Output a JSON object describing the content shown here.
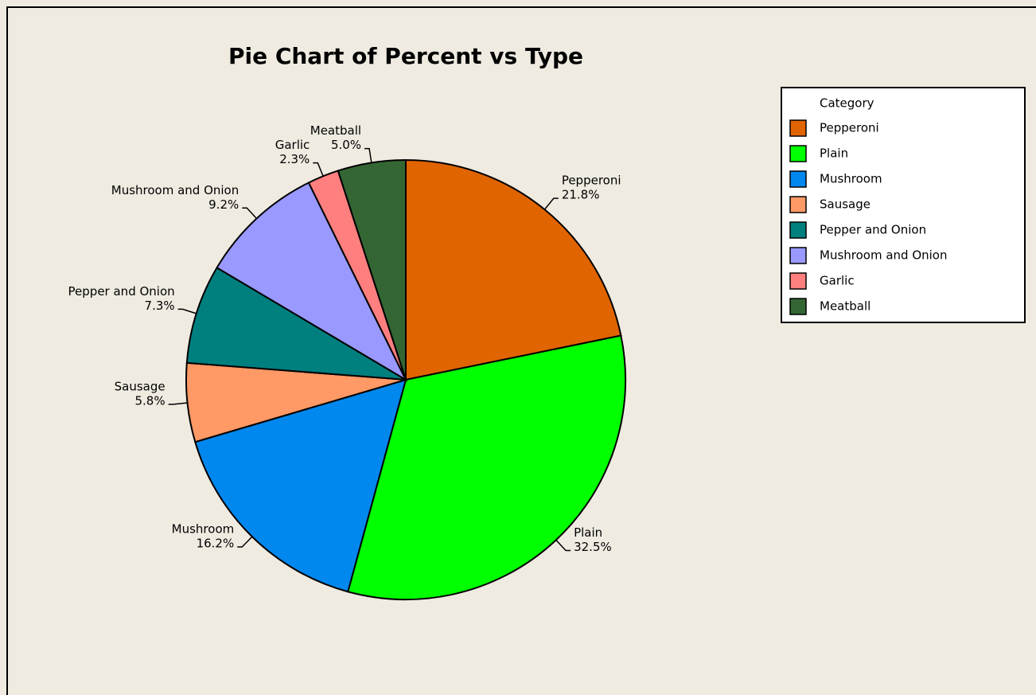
{
  "chart_data": {
    "type": "pie",
    "title": "Pie Chart of Percent vs Type",
    "categories": [
      "Pepperoni",
      "Plain",
      "Mushroom",
      "Sausage",
      "Pepper and Onion",
      "Mushroom and Onion",
      "Garlic",
      "Meatball"
    ],
    "values": [
      21.8,
      32.5,
      16.2,
      5.8,
      7.3,
      9.2,
      2.3,
      5.0
    ],
    "value_labels": [
      "21.8%",
      "32.5%",
      "16.2%",
      "5.8%",
      "7.3%",
      "9.2%",
      "2.3%",
      "5.0%"
    ],
    "colors": [
      "#e06400",
      "#00ff00",
      "#0088ee",
      "#ff9966",
      "#007f7f",
      "#9999ff",
      "#ff7f7f",
      "#336633"
    ],
    "legend_title": "Category",
    "legend": "right"
  }
}
